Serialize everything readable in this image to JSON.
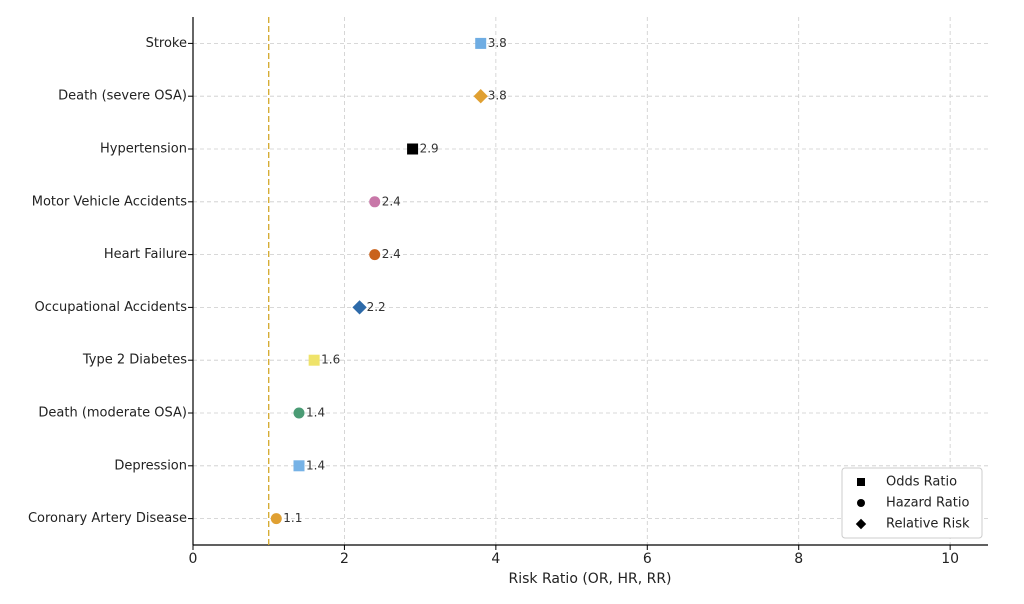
{
  "chart_data": {
    "type": "dot",
    "xlabel": "Risk Ratio (OR, HR, RR)",
    "categories": [
      "Stroke",
      "Death (severe OSA)",
      "Hypertension",
      "Motor Vehicle Accidents",
      "Heart Failure",
      "Occupational Accidents",
      "Type 2 Diabetes",
      "Death (moderate OSA)",
      "Depression",
      "Coronary Artery Disease"
    ],
    "values": [
      3.8,
      3.8,
      2.9,
      2.4,
      2.4,
      2.2,
      1.6,
      1.4,
      1.4,
      1.1
    ],
    "markers": [
      "square",
      "diamond",
      "square",
      "circle",
      "circle",
      "diamond",
      "square",
      "circle",
      "square",
      "circle"
    ],
    "colors": [
      "#6fade3",
      "#e0a032",
      "#000000",
      "#c877a8",
      "#c9621c",
      "#2d6aa9",
      "#efe36a",
      "#4a9b74",
      "#76b2e6",
      "#e0a032"
    ],
    "xlim": [
      0,
      10.5
    ],
    "xticks": [
      0,
      2,
      4,
      6,
      8,
      10
    ],
    "reference_line": 1,
    "reference_color": "#d4a82a",
    "grid": true,
    "legend_position": "lower right",
    "legend": [
      {
        "name": "Odds Ratio",
        "marker": "square"
      },
      {
        "name": "Hazard Ratio",
        "marker": "circle"
      },
      {
        "name": "Relative Risk",
        "marker": "diamond"
      }
    ]
  }
}
